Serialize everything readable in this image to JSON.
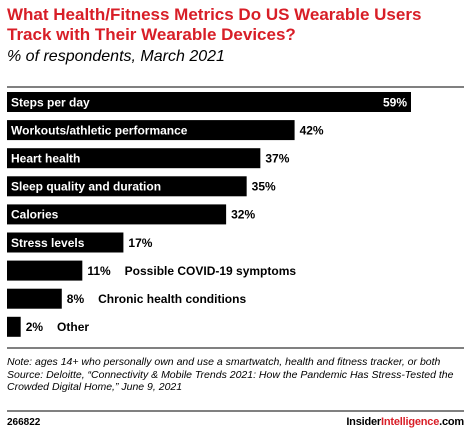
{
  "header": {
    "title": "What Health/Fitness Metrics Do US Wearable Users Track with Their Wearable Devices?",
    "subtitle": "% of respondents, March 2021"
  },
  "chart_data": {
    "type": "bar",
    "orientation": "horizontal",
    "categories": [
      "Steps per day",
      "Workouts/athletic performance",
      "Heart health",
      "Sleep quality and duration",
      "Calories",
      "Stress levels",
      "Possible COVID-19 symptoms",
      "Chronic health conditions",
      "Other"
    ],
    "values": [
      59,
      42,
      37,
      35,
      32,
      17,
      11,
      8,
      2
    ],
    "value_labels": [
      "59%",
      "42%",
      "37%",
      "35%",
      "32%",
      "17%",
      "11%",
      "8%",
      "2%"
    ],
    "xlim": [
      0,
      59
    ],
    "grid": false,
    "bar_color": "#000000",
    "inside_label_color": "#ffffff"
  },
  "notes": {
    "note": "Note: ages 14+ who personally own and use a smartwatch, health and fitness tracker, or both",
    "source": "Source: Deloitte, “Connectivity & Mobile Trends 2021: How the Pandemic Has Stress-Tested the Crowded Digital Home,” June 9, 2021"
  },
  "footer": {
    "chart_id": "266822",
    "brand_insider": "Insider",
    "brand_intelligence": "Intelligence",
    "brand_suffix": ".com"
  },
  "colors": {
    "accent": "#d81e27",
    "bar": "#000000",
    "divider": "#000000"
  }
}
